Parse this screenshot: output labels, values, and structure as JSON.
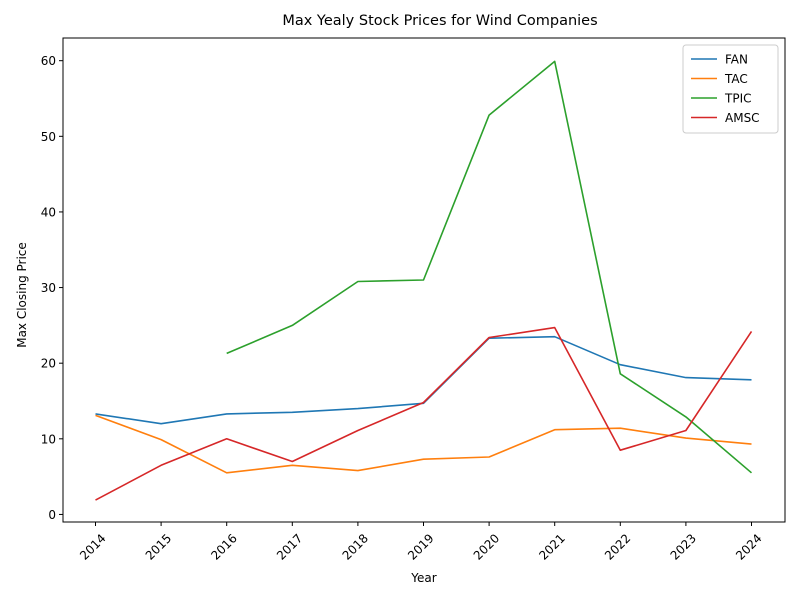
{
  "chart_data": {
    "type": "line",
    "title": "Max Yealy Stock Prices for Wind Companies",
    "xlabel": "Year",
    "ylabel": "Max Closing Price",
    "categories": [
      "2014",
      "2015",
      "2016",
      "2017",
      "2018",
      "2019",
      "2020",
      "2021",
      "2022",
      "2023",
      "2024"
    ],
    "ylim": [
      -1,
      63
    ],
    "yticks": [
      0,
      10,
      20,
      30,
      40,
      50,
      60
    ],
    "grid": false,
    "legend_position": "top-right",
    "series": [
      {
        "name": "FAN",
        "color": "#1f77b4",
        "values": [
          13.3,
          12.0,
          13.3,
          13.5,
          14.0,
          14.7,
          23.3,
          23.5,
          19.8,
          18.1,
          17.8
        ]
      },
      {
        "name": "TAC",
        "color": "#ff7f0e",
        "values": [
          13.1,
          9.9,
          5.5,
          6.5,
          5.8,
          7.3,
          7.6,
          11.2,
          11.4,
          10.1,
          9.3
        ]
      },
      {
        "name": "TPIC",
        "color": "#2ca02c",
        "values": [
          null,
          null,
          21.3,
          25.0,
          30.8,
          31.0,
          52.8,
          59.9,
          18.6,
          12.9,
          5.5
        ]
      },
      {
        "name": "AMSC",
        "color": "#d62728",
        "values": [
          1.9,
          6.5,
          10.0,
          7.0,
          11.1,
          14.8,
          23.4,
          24.7,
          8.5,
          11.1,
          24.2
        ]
      }
    ]
  }
}
